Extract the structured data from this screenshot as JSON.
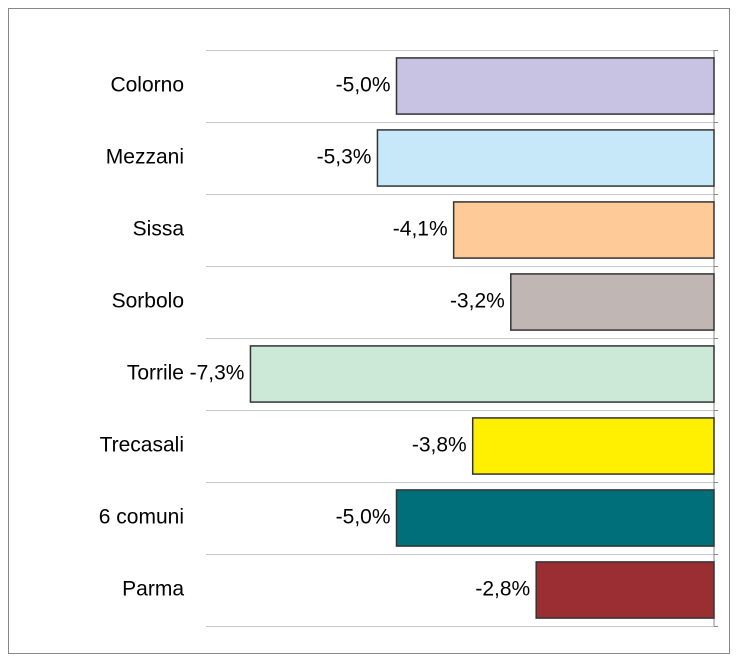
{
  "chart_data": {
    "type": "bar",
    "orientation": "horizontal",
    "categories": [
      "Colorno",
      "Mezzani",
      "Sissa",
      "Sorbolo",
      "Torrile",
      "Trecasali",
      "6 comuni",
      "Parma"
    ],
    "values": [
      -5.0,
      -5.3,
      -4.1,
      -3.2,
      -7.3,
      -3.8,
      -5.0,
      -2.8
    ],
    "value_labels": [
      "-5,0%",
      "-5,3%",
      "-4,1%",
      "-3,2%",
      "-7,3%",
      "-3,8%",
      "-5,0%",
      "-2,8%"
    ],
    "colors": [
      "#c8c3e3",
      "#c6e8f8",
      "#fecb98",
      "#c0b6b4",
      "#cce8d6",
      "#ffef00",
      "#006f7a",
      "#9a2e32"
    ],
    "xlim": [
      -8,
      0
    ],
    "grid": true
  }
}
